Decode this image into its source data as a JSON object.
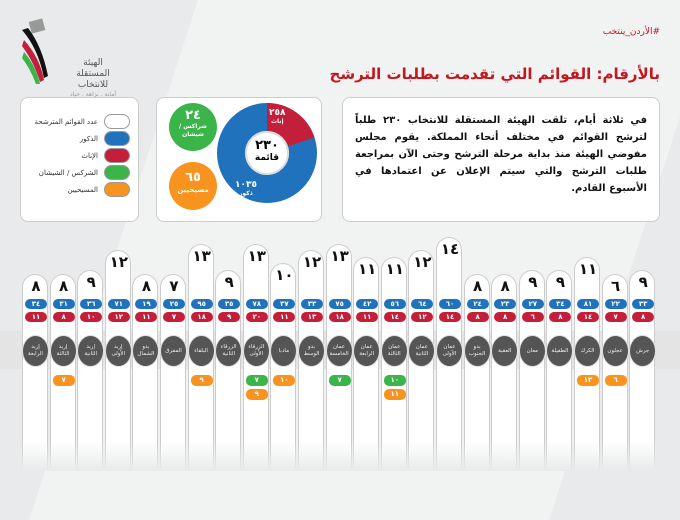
{
  "header": {
    "hashtag": "#الأردن_ينتخب",
    "title": "بالأرقام: القوائم التي تقدمت بطلبات الترشح"
  },
  "logo": {
    "name_line1": "الهيئة المستقلة",
    "name_line2": "للانتخاب",
    "tagline": "أمانة . نزاهة . حياد"
  },
  "intro_text": "في ثلاثة أيام، تلقت الهيئة المستقلة للانتخاب ٢٣٠ طلباً لترشح القوائم في مختلف أنحاء المملكة. يقوم مجلس مفوضي الهيئة منذ بداية مرحلة الترشح وحتى الآن بمراجعة طلبات الترشح والتي سيتم الإعلان عن اعتمادها في الأسبوع القادم.",
  "summary": {
    "total": "٢٣٠",
    "total_label": "قائمة",
    "males": "١٠٣٥",
    "males_label": "ذكور",
    "females": "٢٥٨",
    "females_label": "إناث",
    "circassian": "٢٤",
    "circassian_label": "شراكس / شيشان",
    "christians": "٦٥",
    "christians_label": "مسيحيين",
    "male_value": 1035,
    "female_value": 258
  },
  "legend": [
    {
      "label": "عدد القوائم المترشحة",
      "color": "#ffffff"
    },
    {
      "label": "الذكور",
      "color": "#1f72bb"
    },
    {
      "label": "الإناث",
      "color": "#c41f3a"
    },
    {
      "label": "الشركس / الشيشان",
      "color": "#3bb54a"
    },
    {
      "label": "المسيحيين",
      "color": "#f7931e"
    }
  ],
  "colors": {
    "accent": "#c4161c",
    "male": "#1f72bb",
    "female": "#c41f3a",
    "circassian": "#3bb54a",
    "christian": "#f7931e"
  },
  "districts": [
    {
      "name": "إربد الرابعة",
      "lists": "٨",
      "n": 8,
      "m": "٣٤",
      "f": "١١"
    },
    {
      "name": "إربد الثالثة",
      "lists": "٨",
      "n": 8,
      "m": "٣١",
      "f": "٨",
      "c": "٧"
    },
    {
      "name": "إربد الثانية",
      "lists": "٩",
      "n": 9,
      "m": "٣٦",
      "f": "١٠"
    },
    {
      "name": "إربد الأولى",
      "lists": "١٢",
      "n": 12,
      "m": "٧١",
      "f": "١٢"
    },
    {
      "name": "بدو الشمال",
      "lists": "٨",
      "n": 8,
      "m": "١٩",
      "f": "١١"
    },
    {
      "name": "المفرق",
      "lists": "٧",
      "n": 7,
      "m": "٢٥",
      "f": "٧"
    },
    {
      "name": "البلقاء",
      "lists": "١٣",
      "n": 13,
      "m": "٩٥",
      "f": "١٨",
      "c": "٩"
    },
    {
      "name": "الزرقاء الثانية",
      "lists": "٩",
      "n": 9,
      "m": "٣٥",
      "f": "٩"
    },
    {
      "name": "الزرقاء الأولى",
      "lists": "١٣",
      "n": 13,
      "m": "٧٨",
      "f": "٢٠",
      "g": "٧",
      "c": "٩"
    },
    {
      "name": "مادبا",
      "lists": "١٠",
      "n": 10,
      "m": "٣٧",
      "f": "١١",
      "c": "١٠"
    },
    {
      "name": "بدو الوسط",
      "lists": "١٢",
      "n": 12,
      "m": "٣٣",
      "f": "١٣"
    },
    {
      "name": "عمان الخامسة",
      "lists": "١٣",
      "n": 13,
      "m": "٧٥",
      "f": "١٨",
      "g": "٧"
    },
    {
      "name": "عمان الرابعة",
      "lists": "١١",
      "n": 11,
      "m": "٤٢",
      "f": "١١"
    },
    {
      "name": "عمان الثالثة",
      "lists": "١١",
      "n": 11,
      "m": "٥٦",
      "f": "١٤",
      "g": "١٠",
      "c": "١١"
    },
    {
      "name": "عمان الثانية",
      "lists": "١٢",
      "n": 12,
      "m": "٦٤",
      "f": "١٢"
    },
    {
      "name": "عمان الأولى",
      "lists": "١٤",
      "n": 14,
      "m": "٦٠",
      "f": "١٤"
    },
    {
      "name": "بدو الجنوب",
      "lists": "٨",
      "n": 8,
      "m": "٢٤",
      "f": "٨"
    },
    {
      "name": "العقبة",
      "lists": "٨",
      "n": 8,
      "m": "٢٣",
      "f": "٨"
    },
    {
      "name": "معان",
      "lists": "٩",
      "n": 9,
      "m": "٢٧",
      "f": "٦"
    },
    {
      "name": "الطفيلة",
      "lists": "٩",
      "n": 9,
      "m": "٣٤",
      "f": "٨"
    },
    {
      "name": "الكرك",
      "lists": "١١",
      "n": 11,
      "m": "٨١",
      "f": "١٤",
      "c": "١٣"
    },
    {
      "name": "عجلون",
      "lists": "٦",
      "n": 6,
      "m": "٢٢",
      "f": "٧",
      "c": "٦"
    },
    {
      "name": "جرش",
      "lists": "٩",
      "n": 9,
      "m": "٣٣",
      "f": "٨"
    }
  ]
}
